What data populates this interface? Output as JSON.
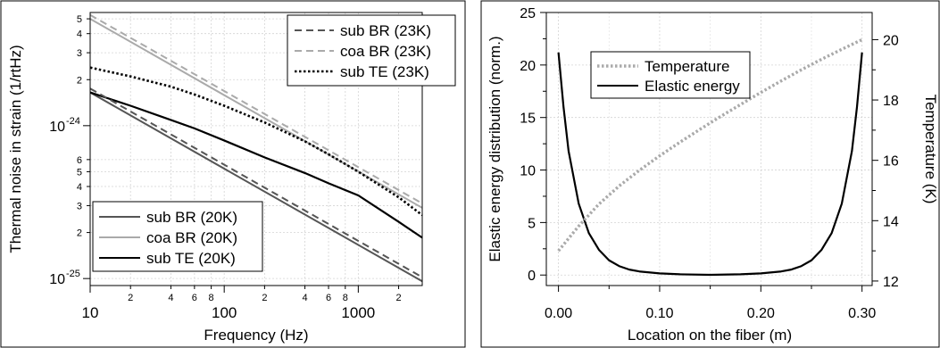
{
  "chart_data": [
    {
      "type": "line",
      "xlabel": "Frequency (Hz)",
      "ylabel": "Thermal noise in strain (1/rtHz)",
      "xscale": "log",
      "yscale": "log",
      "xlim": [
        10,
        3000
      ],
      "ylim": [
        9e-26,
        5.5e-24
      ],
      "grid": true,
      "x_ticks_major": [
        10,
        100,
        1000
      ],
      "x_tick_labels": [
        "10",
        "100",
        "1000"
      ],
      "x_ticks_minor": [
        20,
        40,
        60,
        80,
        200,
        400,
        600,
        800,
        2000
      ],
      "x_minor_labels": [
        "2",
        "4",
        "6",
        "8",
        "2",
        "4",
        "6",
        "8",
        "2"
      ],
      "y_ticks_major": [
        1e-25,
        1e-24
      ],
      "y_major_labels": [
        {
          "base": "10",
          "exp": "-25"
        },
        {
          "base": "10",
          "exp": "-24"
        }
      ],
      "y_ticks_minor": [
        2e-25,
        3e-25,
        4e-25,
        5e-25,
        6e-25,
        2e-24,
        3e-24,
        4e-24,
        5e-24
      ],
      "y_minor_labels": [
        "2",
        "3",
        "4",
        "5",
        "6",
        "2",
        "3",
        "4",
        "5"
      ],
      "legends": [
        {
          "placement": "top-right",
          "entries": [
            {
              "name": "sub BR (23K)",
              "color": "#555555",
              "dash": "dashed"
            },
            {
              "name": "coa BR (23K)",
              "color": "#aaaaaa",
              "dash": "dashed"
            },
            {
              "name": "sub TE (23K)",
              "color": "#000000",
              "dash": "dotted"
            }
          ]
        },
        {
          "placement": "bottom-left",
          "entries": [
            {
              "name": "sub BR (20K)",
              "color": "#555555",
              "dash": "solid"
            },
            {
              "name": "coa BR (20K)",
              "color": "#aaaaaa",
              "dash": "solid"
            },
            {
              "name": "sub TE (20K)",
              "color": "#000000",
              "dash": "solid"
            }
          ]
        }
      ],
      "series": [
        {
          "name": "sub BR (20K)",
          "color": "#555555",
          "dash": "solid",
          "width": 2,
          "x": [
            10,
            3000
          ],
          "y": [
            1.65e-24,
            9.6e-26
          ]
        },
        {
          "name": "coa BR (20K)",
          "color": "#aaaaaa",
          "dash": "solid",
          "width": 2,
          "x": [
            10,
            3000
          ],
          "y": [
            5e-24,
            2.9e-25
          ]
        },
        {
          "name": "sub TE (20K)",
          "color": "#000000",
          "dash": "solid",
          "width": 2.2,
          "x": [
            10,
            20,
            40,
            60,
            100,
            200,
            400,
            600,
            1000,
            2000,
            3000
          ],
          "y": [
            1.65e-24,
            1.35e-24,
            1.09e-24,
            9.6e-25,
            8e-25,
            6.2e-25,
            4.9e-25,
            4.2e-25,
            3.5e-25,
            2.35e-25,
            1.85e-25
          ]
        },
        {
          "name": "sub BR (23K)",
          "color": "#555555",
          "dash": "dashed",
          "width": 2,
          "x": [
            10,
            3000
          ],
          "y": [
            1.75e-24,
            1.02e-25
          ]
        },
        {
          "name": "coa BR (23K)",
          "color": "#aaaaaa",
          "dash": "dashed",
          "width": 2,
          "x": [
            10,
            3000
          ],
          "y": [
            5.3e-24,
            3.1e-25
          ]
        },
        {
          "name": "sub TE (23K)",
          "color": "#000000",
          "dash": "dotted",
          "width": 2.6,
          "x": [
            10,
            20,
            40,
            60,
            100,
            200,
            400,
            600,
            1000,
            2000,
            3000
          ],
          "y": [
            2.4e-24,
            2.1e-24,
            1.8e-24,
            1.6e-24,
            1.35e-24,
            1.05e-24,
            7.9e-25,
            6.5e-25,
            5e-25,
            3.4e-25,
            2.6e-25
          ]
        }
      ]
    },
    {
      "type": "line",
      "xlabel": "Location on the fiber (m)",
      "ylabel": "Elastic energy distribution (norm.)",
      "y2label": "Temperature (K)",
      "xlim": [
        -0.012,
        0.31
      ],
      "ylim": [
        -1,
        25
      ],
      "y2lim": [
        11.85,
        20.9
      ],
      "grid": true,
      "x_ticks": [
        0.0,
        0.1,
        0.2,
        0.3
      ],
      "x_tick_labels": [
        "0.00",
        "0.10",
        "0.20",
        "0.30"
      ],
      "y_ticks": [
        0,
        5,
        10,
        15,
        20,
        25
      ],
      "y_tick_labels": [
        "0",
        "5",
        "10",
        "15",
        "20",
        "25"
      ],
      "y2_ticks": [
        12,
        14,
        16,
        18,
        20
      ],
      "y2_tick_labels": [
        "12",
        "14",
        "16",
        "18",
        "20"
      ],
      "legend": {
        "placement": "top-left",
        "entries": [
          {
            "name": "Temperature",
            "color": "#aaaaaa",
            "dash": "dotted"
          },
          {
            "name": "Elastic energy",
            "color": "#000000",
            "dash": "solid"
          }
        ]
      },
      "series": [
        {
          "name": "Elastic energy",
          "axis": "left",
          "color": "#000000",
          "dash": "solid",
          "width": 2.2,
          "x": [
            0.0,
            0.005,
            0.01,
            0.02,
            0.03,
            0.04,
            0.05,
            0.06,
            0.07,
            0.08,
            0.1,
            0.12,
            0.15,
            0.18,
            0.2,
            0.22,
            0.23,
            0.24,
            0.25,
            0.26,
            0.27,
            0.28,
            0.29,
            0.295,
            0.3
          ],
          "y": [
            21.2,
            16.0,
            11.8,
            6.8,
            4.0,
            2.4,
            1.4,
            0.85,
            0.52,
            0.34,
            0.16,
            0.07,
            0.02,
            0.07,
            0.16,
            0.34,
            0.52,
            0.85,
            1.4,
            2.4,
            4.0,
            6.8,
            11.8,
            16.0,
            21.2
          ]
        },
        {
          "name": "Temperature",
          "axis": "right",
          "color": "#aaaaaa",
          "dash": "dotted",
          "width": 3.4,
          "x": [
            0.0,
            0.02,
            0.04,
            0.06,
            0.08,
            0.1,
            0.12,
            0.14,
            0.16,
            0.18,
            0.2,
            0.22,
            0.24,
            0.26,
            0.28,
            0.3
          ],
          "y": [
            13.0,
            13.82,
            14.55,
            15.15,
            15.67,
            16.15,
            16.6,
            17.03,
            17.45,
            17.85,
            18.25,
            18.63,
            19.0,
            19.35,
            19.68,
            20.0
          ]
        }
      ]
    }
  ]
}
